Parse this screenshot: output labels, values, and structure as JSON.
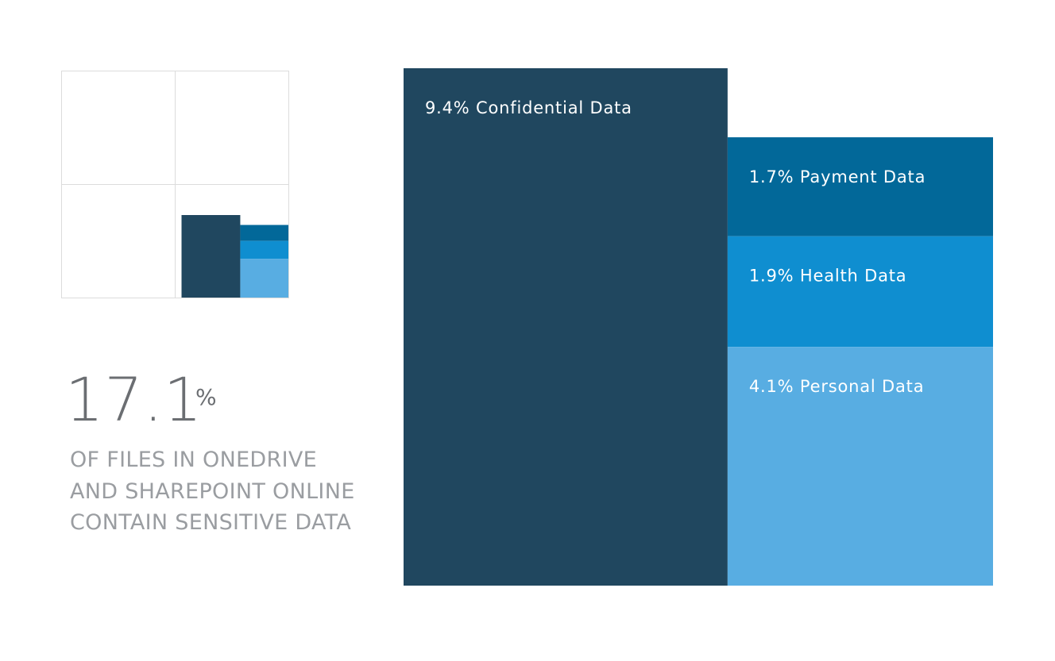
{
  "headline": {
    "value": "17.1",
    "unit": "%",
    "caption_lines": [
      "OF FILES IN ONEDRIVE",
      "AND SHAREPOINT ONLINE",
      "CONTAIN SENSITIVE DATA"
    ]
  },
  "colors": {
    "confidential": "#20475f",
    "payment": "#026899",
    "health": "#0f8ed0",
    "personal": "#58ade2",
    "grid_line": "#dcdcdc",
    "headline_text": "#6b6e72",
    "caption_text": "#9a9da1"
  },
  "chart_data": {
    "type": "treemap",
    "title": "",
    "total": 17.1,
    "unit": "%",
    "segments": [
      {
        "key": "confidential",
        "value": 9.4,
        "label": "9.4% Confidential Data"
      },
      {
        "key": "payment",
        "value": 1.7,
        "label": "1.7% Payment Data"
      },
      {
        "key": "health",
        "value": 1.9,
        "label": "1.9% Health Data"
      },
      {
        "key": "personal",
        "value": 4.1,
        "label": "4.1% Personal Data"
      }
    ],
    "thumbnail": {
      "grid": [
        2,
        2
      ],
      "shows_share_of_whole": 17.1
    }
  }
}
